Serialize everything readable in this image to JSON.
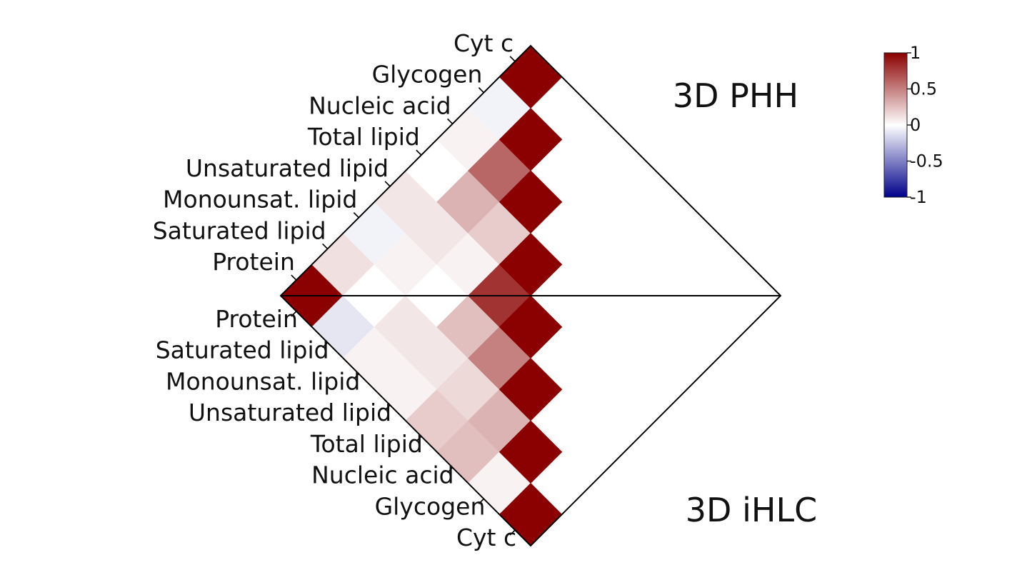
{
  "chart_data": {
    "type": "heatmap",
    "layout": "rotated-diamond dual triangular correlation matrix",
    "variables": [
      "Protein",
      "Saturated lipid",
      "Monounsat. lipid",
      "Unsaturated lipid",
      "Total lipid",
      "Nucleic acid",
      "Glycogen",
      "Cyt c"
    ],
    "top_title": "3D PHH",
    "bottom_title": "3D iHLC",
    "top_axis_labels": [
      "Protein",
      "Saturated lipid",
      "Monounsat. lipid",
      "Unsaturated lipid",
      "Total lipid",
      "Nucleic acid",
      "Glycogen",
      "Cyt c"
    ],
    "bottom_axis_labels": [
      "Protein",
      "Saturated lipid",
      "Monounsat. lipid",
      "Unsaturated lipid",
      "Total lipid",
      "Nucleic acid",
      "Glycogen",
      "Cyt c"
    ],
    "top_matrix": [
      [
        1.0,
        -0.25,
        0.02,
        0.02,
        -0.2,
        0.0,
        0.0,
        0.55
      ],
      [
        -0.25,
        1.0,
        0.2,
        0.02,
        0.5,
        0.05,
        0.05,
        -0.05
      ],
      [
        0.02,
        0.2,
        1.0,
        0.35,
        0.95,
        0.05,
        0.1,
        0.08
      ],
      [
        0.02,
        0.02,
        0.35,
        1.0,
        0.7,
        0.15,
        0.15,
        0.05
      ],
      [
        -0.2,
        0.5,
        0.95,
        0.7,
        1.0,
        0.01,
        0.2,
        0.0
      ],
      [
        0.0,
        0.05,
        0.05,
        0.15,
        0.01,
        1.0,
        0.15,
        0.0
      ],
      [
        0.0,
        0.05,
        0.1,
        0.15,
        0.2,
        0.15,
        1.0,
        0.5
      ],
      [
        0.55,
        -0.05,
        0.08,
        0.05,
        0.0,
        0.0,
        0.5,
        1.0
      ]
    ],
    "bottom_matrix": [
      [
        1.0,
        -0.05,
        0.05,
        0.0,
        0.1,
        -0.05,
        0.12,
        1.0
      ],
      [
        -0.05,
        1.0,
        0.6,
        0.3,
        0.1,
        0.05,
        0.0,
        -0.1
      ],
      [
        0.05,
        0.6,
        1.0,
        0.2,
        0.05,
        0.0,
        0.1,
        0.05
      ],
      [
        0.0,
        0.3,
        0.2,
        1.0,
        0.8,
        0.25,
        0.1,
        0.05
      ],
      [
        0.1,
        0.1,
        0.05,
        0.8,
        1.0,
        0.5,
        0.15,
        0.2
      ],
      [
        -0.05,
        0.05,
        0.0,
        0.25,
        0.5,
        1.0,
        0.3,
        0.25
      ],
      [
        0.12,
        0.0,
        0.1,
        0.1,
        0.15,
        0.3,
        1.0,
        0.05
      ],
      [
        1.0,
        -0.1,
        0.05,
        0.05,
        0.2,
        0.25,
        0.05,
        1.0
      ]
    ],
    "colorbar": {
      "min": -1,
      "max": 1,
      "ticks": [
        1,
        0.5,
        0,
        -0.5,
        -1
      ],
      "tick_labels": [
        "1",
        "0.5",
        "0",
        "-0.5",
        "-1"
      ],
      "colors": {
        "low": "#00008b",
        "mid": "#ffffff",
        "high": "#8b0000"
      }
    },
    "grid": false
  }
}
